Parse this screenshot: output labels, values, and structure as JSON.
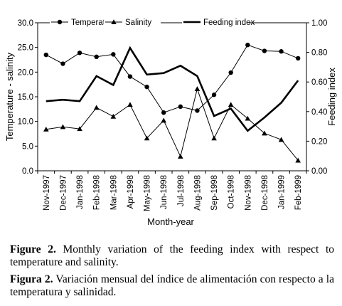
{
  "chart_data": {
    "type": "line",
    "categories": [
      "Nov-1997",
      "Dec-1997",
      "Jan-1998",
      "Feb-1998",
      "Mar-1998",
      "Apr-1998",
      "May-1998",
      "Jun-1998",
      "Jul-1998",
      "Aug-1998",
      "Sep-1998",
      "Oct-1998",
      "Nov-1998",
      "Dec-1998",
      "Jan-1999",
      "Feb-1999"
    ],
    "xlabel": "Month-year",
    "ylabel": "Temperature - salinity",
    "y2label": "Feeding index",
    "ylim": [
      0,
      30
    ],
    "y2lim": [
      0,
      1
    ],
    "yticks": [
      "0.0",
      "5.0",
      "10.0",
      "15.0",
      "20.0",
      "25.0",
      "30.0"
    ],
    "y2ticks": [
      "0.00",
      "0.20",
      "0.40",
      "0.60",
      "0.80",
      "1.00"
    ],
    "legend_position": "top",
    "series": [
      {
        "name": "Temperature",
        "axis": "left",
        "marker": "circle",
        "values": [
          23.5,
          21.7,
          23.9,
          23.1,
          23.6,
          19.1,
          17.0,
          11.8,
          13.0,
          12.2,
          15.4,
          19.9,
          25.5,
          24.3,
          24.2,
          22.8
        ]
      },
      {
        "name": "Salinity",
        "axis": "left",
        "marker": "triangle",
        "values": [
          8.4,
          8.9,
          8.5,
          12.8,
          11.0,
          13.4,
          6.6,
          10.2,
          2.9,
          16.6,
          6.6,
          13.4,
          10.6,
          7.6,
          6.3,
          2.1
        ]
      },
      {
        "name": "Feeding index",
        "axis": "right",
        "marker": "none",
        "thick": true,
        "values": [
          0.47,
          0.48,
          0.47,
          0.64,
          0.58,
          0.83,
          0.65,
          0.66,
          0.71,
          0.64,
          0.37,
          0.42,
          0.27,
          0.36,
          0.46,
          0.61
        ]
      }
    ]
  },
  "caption_en": {
    "label": "Figure 2.",
    "text": "Monthly variation of the feeding index with respect to temperature and salinity."
  },
  "caption_es": {
    "label": "Figura 2.",
    "text": "Variación mensual del índice de alimentación con respecto a la temperatura y salinidad."
  }
}
